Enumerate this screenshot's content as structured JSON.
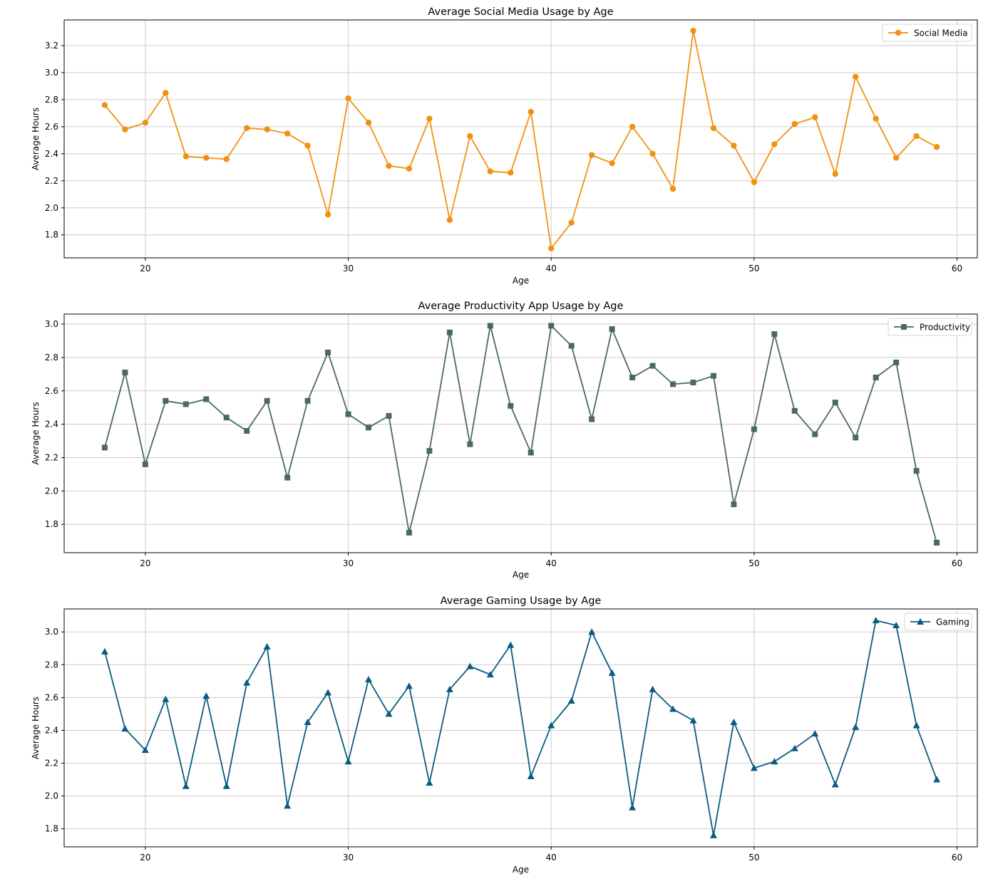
{
  "chart_data": [
    {
      "type": "line",
      "title": "Average Social Media Usage by Age",
      "xlabel": "Age",
      "ylabel": "Average Hours",
      "xlim": [
        16,
        61
      ],
      "ylim": [
        1.63,
        3.39
      ],
      "xticks": [
        20,
        30,
        40,
        50,
        60
      ],
      "yticks": [
        1.8,
        2.0,
        2.2,
        2.4,
        2.6,
        2.8,
        3.0,
        3.2
      ],
      "grid": true,
      "legend_position": "top-right",
      "x": [
        18,
        19,
        20,
        21,
        22,
        23,
        24,
        25,
        26,
        27,
        28,
        29,
        30,
        31,
        32,
        33,
        34,
        35,
        36,
        37,
        38,
        39,
        40,
        41,
        42,
        43,
        44,
        45,
        46,
        47,
        48,
        49,
        50,
        51,
        52,
        53,
        54,
        55,
        56,
        57,
        58,
        59
      ],
      "series": [
        {
          "name": "Social Media",
          "color": "#f29111",
          "marker": "circle",
          "values": [
            2.76,
            2.58,
            2.63,
            2.85,
            2.38,
            2.37,
            2.36,
            2.59,
            2.58,
            2.55,
            2.46,
            1.95,
            2.81,
            2.63,
            2.31,
            2.29,
            2.66,
            1.91,
            2.53,
            2.27,
            2.26,
            2.71,
            1.7,
            1.89,
            2.39,
            2.33,
            2.6,
            2.4,
            2.14,
            3.31,
            2.59,
            2.46,
            2.19,
            2.47,
            2.62,
            2.67,
            2.25,
            2.97,
            2.66,
            2.37,
            2.53,
            2.45
          ]
        }
      ]
    },
    {
      "type": "line",
      "title": "Average Productivity App Usage by Age",
      "xlabel": "Age",
      "ylabel": "Average Hours",
      "xlim": [
        16,
        61
      ],
      "ylim": [
        1.63,
        3.06
      ],
      "xticks": [
        20,
        30,
        40,
        50,
        60
      ],
      "yticks": [
        1.8,
        2.0,
        2.2,
        2.4,
        2.6,
        2.8,
        3.0
      ],
      "grid": true,
      "legend_position": "top-right",
      "x": [
        18,
        19,
        20,
        21,
        22,
        23,
        24,
        25,
        26,
        27,
        28,
        29,
        30,
        31,
        32,
        33,
        34,
        35,
        36,
        37,
        38,
        39,
        40,
        41,
        42,
        43,
        44,
        45,
        46,
        47,
        48,
        49,
        50,
        51,
        52,
        53,
        54,
        55,
        56,
        57,
        58,
        59
      ],
      "series": [
        {
          "name": "Productivity",
          "color": "#4a6b5a",
          "marker": "square",
          "values": [
            2.26,
            2.71,
            2.16,
            2.54,
            2.52,
            2.55,
            2.44,
            2.36,
            2.54,
            2.08,
            2.54,
            2.83,
            2.46,
            2.38,
            2.45,
            1.75,
            2.24,
            2.95,
            2.28,
            2.99,
            2.51,
            2.23,
            2.99,
            2.87,
            2.43,
            2.97,
            2.68,
            2.75,
            2.64,
            2.65,
            2.69,
            1.92,
            2.37,
            2.94,
            2.48,
            2.34,
            2.53,
            2.32,
            2.68,
            2.77,
            2.12,
            1.69
          ]
        }
      ]
    },
    {
      "type": "line",
      "title": "Average Gaming Usage by Age",
      "xlabel": "Age",
      "ylabel": "Average Hours",
      "xlim": [
        16,
        61
      ],
      "ylim": [
        1.69,
        3.14
      ],
      "xticks": [
        20,
        30,
        40,
        50,
        60
      ],
      "yticks": [
        1.8,
        2.0,
        2.2,
        2.4,
        2.6,
        2.8,
        3.0
      ],
      "grid": true,
      "legend_position": "top-right",
      "x": [
        18,
        19,
        20,
        21,
        22,
        23,
        24,
        25,
        26,
        27,
        28,
        29,
        30,
        31,
        32,
        33,
        34,
        35,
        36,
        37,
        38,
        39,
        40,
        41,
        42,
        43,
        44,
        45,
        46,
        47,
        48,
        49,
        50,
        51,
        52,
        53,
        54,
        55,
        56,
        57,
        58,
        59
      ],
      "series": [
        {
          "name": "Gaming",
          "color": "#0b5a80",
          "marker": "triangle",
          "values": [
            2.88,
            2.41,
            2.28,
            2.59,
            2.06,
            2.61,
            2.06,
            2.69,
            2.91,
            1.94,
            2.45,
            2.63,
            2.21,
            2.71,
            2.5,
            2.67,
            2.08,
            2.65,
            2.79,
            2.74,
            2.92,
            2.12,
            2.43,
            2.58,
            3.0,
            2.75,
            1.93,
            2.65,
            2.53,
            2.46,
            1.76,
            2.45,
            2.17,
            2.21,
            2.29,
            2.38,
            2.07,
            2.42,
            3.07,
            3.04,
            2.43,
            2.1
          ]
        }
      ]
    }
  ]
}
